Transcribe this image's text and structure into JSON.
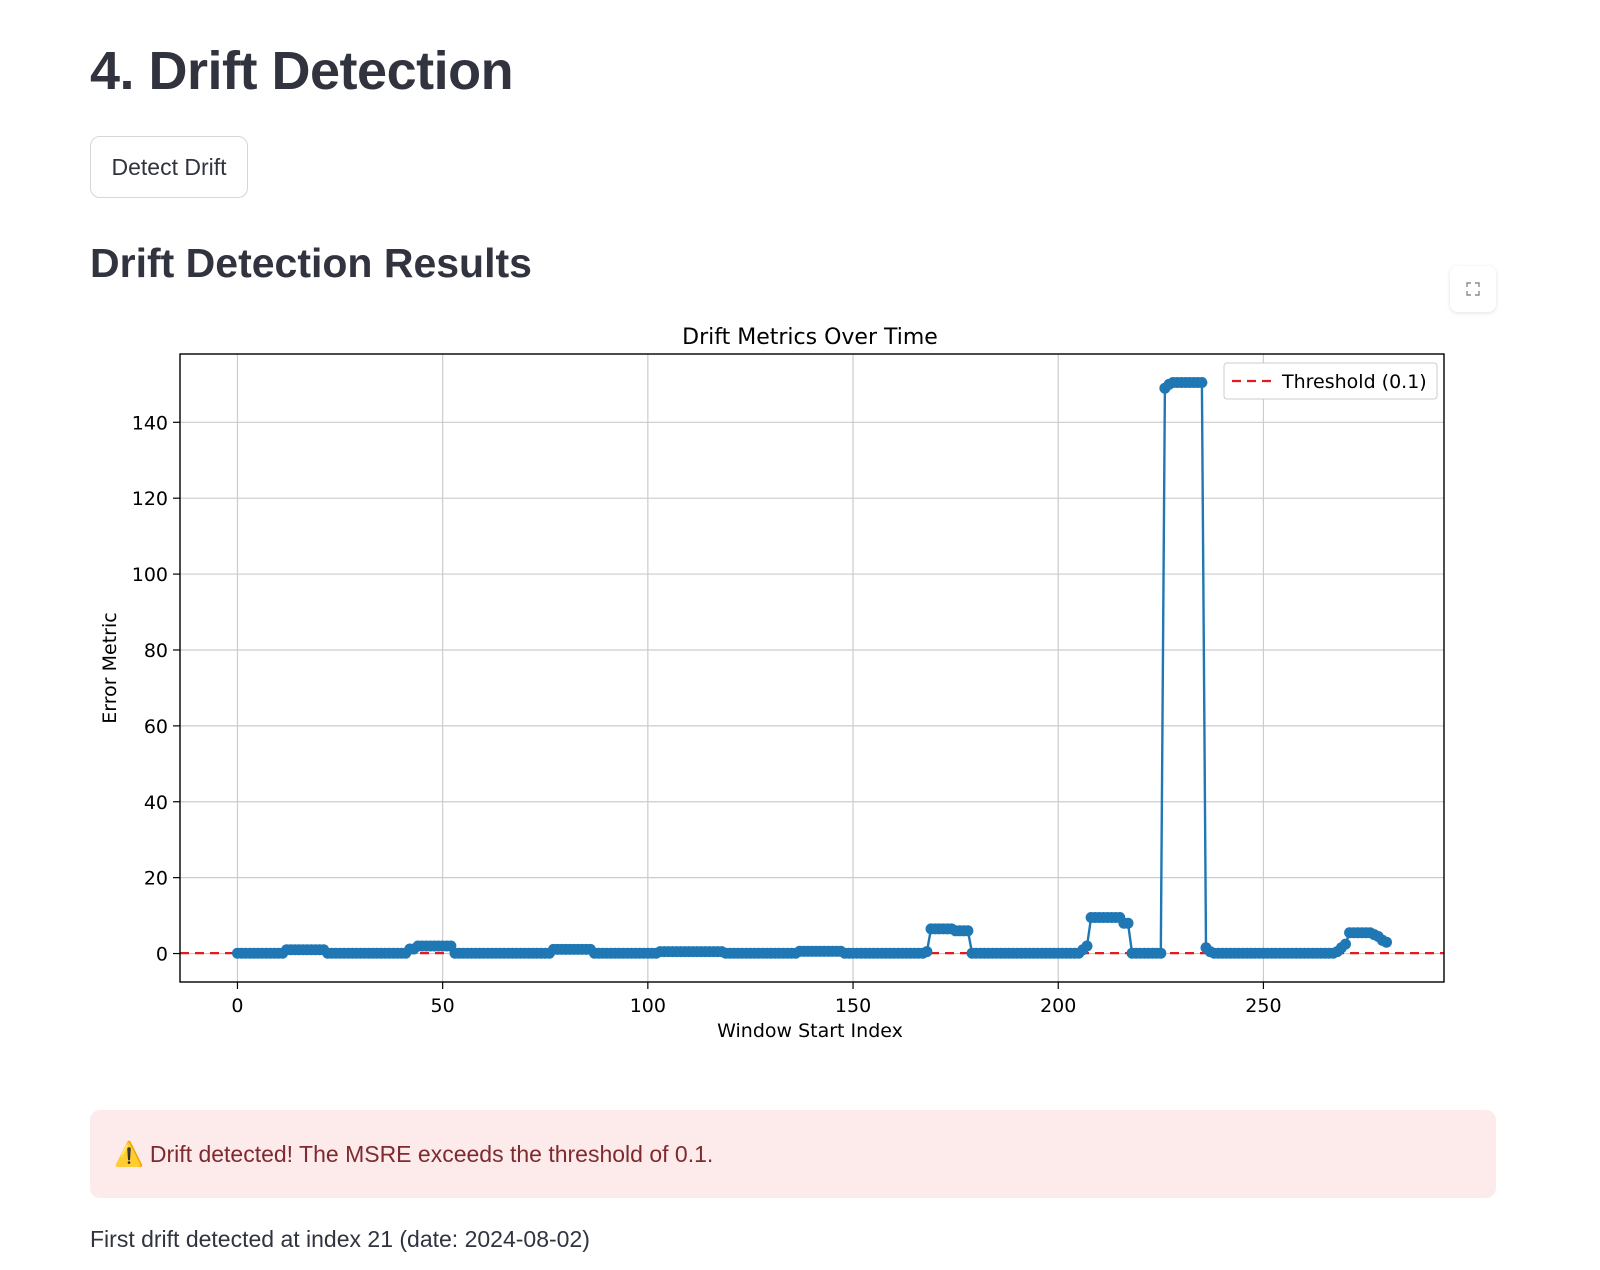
{
  "page": {
    "title": "4. Drift Detection",
    "detect_button_label": "Detect Drift",
    "results_title": "Drift Detection Results",
    "fullscreen_icon": "expand-icon",
    "alert": {
      "icon": "warning-icon",
      "icon_glyph": "⚠️",
      "text": "Drift detected! The MSRE exceeds the threshold of 0.1.",
      "background": "#fdebec",
      "text_color": "#7d2b2f"
    },
    "first_drift_text": "First drift detected at index 21 (date: 2024-08-02)"
  },
  "chart_data": {
    "type": "line",
    "title": "Drift Metrics Over Time",
    "xlabel": "Window Start Index",
    "ylabel": "Error Metric",
    "xlim": [
      -14,
      294
    ],
    "ylim": [
      -7.5,
      158
    ],
    "xticks": [
      0,
      50,
      100,
      150,
      200,
      250
    ],
    "yticks": [
      0,
      20,
      40,
      60,
      80,
      100,
      120,
      140
    ],
    "grid": true,
    "legend": {
      "placement": "top-right",
      "entries": [
        {
          "label": "Threshold (0.1)",
          "style": "dashed",
          "color": "#e41a1c"
        }
      ]
    },
    "threshold": 0.1,
    "series": [
      {
        "color": "#1f77b4",
        "segments": [
          {
            "x_start": 0,
            "x_end": 11,
            "y": 0.1
          },
          {
            "x_start": 12,
            "x_end": 21,
            "y": 1.0
          },
          {
            "x_start": 22,
            "x_end": 41,
            "y": 0.1
          },
          {
            "x_start": 42,
            "x_end": 43,
            "y": 1.2
          },
          {
            "x_start": 44,
            "x_end": 52,
            "y": 2.0
          },
          {
            "x_start": 53,
            "x_end": 76,
            "y": 0.1
          },
          {
            "x_start": 77,
            "x_end": 86,
            "y": 1.1
          },
          {
            "x_start": 87,
            "x_end": 102,
            "y": 0.1
          },
          {
            "x_start": 103,
            "x_end": 118,
            "y": 0.5
          },
          {
            "x_start": 119,
            "x_end": 136,
            "y": 0.1
          },
          {
            "x_start": 137,
            "x_end": 147,
            "y": 0.6
          },
          {
            "x_start": 148,
            "x_end": 167,
            "y": 0.1
          },
          {
            "x_start": 168,
            "x_end": 168,
            "y": 0.5
          },
          {
            "x_start": 169,
            "x_end": 174,
            "y": 6.5
          },
          {
            "x_start": 175,
            "x_end": 178,
            "y": 6.0
          },
          {
            "x_start": 179,
            "x_end": 205,
            "y": 0.1
          },
          {
            "x_start": 206,
            "x_end": 206,
            "y": 1.0
          },
          {
            "x_start": 207,
            "x_end": 207,
            "y": 2.0
          },
          {
            "x_start": 208,
            "x_end": 215,
            "y": 9.5
          },
          {
            "x_start": 216,
            "x_end": 217,
            "y": 8.0
          },
          {
            "x_start": 218,
            "x_end": 225,
            "y": 0.1
          },
          {
            "x_start": 226,
            "x_end": 226,
            "y": 149.0
          },
          {
            "x_start": 227,
            "x_end": 227,
            "y": 150.0
          },
          {
            "x_start": 228,
            "x_end": 235,
            "y": 150.5
          },
          {
            "x_start": 236,
            "x_end": 236,
            "y": 1.5
          },
          {
            "x_start": 237,
            "x_end": 237,
            "y": 0.5
          },
          {
            "x_start": 238,
            "x_end": 267,
            "y": 0.1
          },
          {
            "x_start": 268,
            "x_end": 268,
            "y": 0.5
          },
          {
            "x_start": 269,
            "x_end": 269,
            "y": 1.5
          },
          {
            "x_start": 270,
            "x_end": 270,
            "y": 2.5
          },
          {
            "x_start": 271,
            "x_end": 276,
            "y": 5.5
          },
          {
            "x_start": 277,
            "x_end": 277,
            "y": 5.0
          },
          {
            "x_start": 278,
            "x_end": 278,
            "y": 4.5
          },
          {
            "x_start": 279,
            "x_end": 279,
            "y": 3.5
          },
          {
            "x_start": 280,
            "x_end": 280,
            "y": 3.0
          }
        ]
      }
    ]
  }
}
